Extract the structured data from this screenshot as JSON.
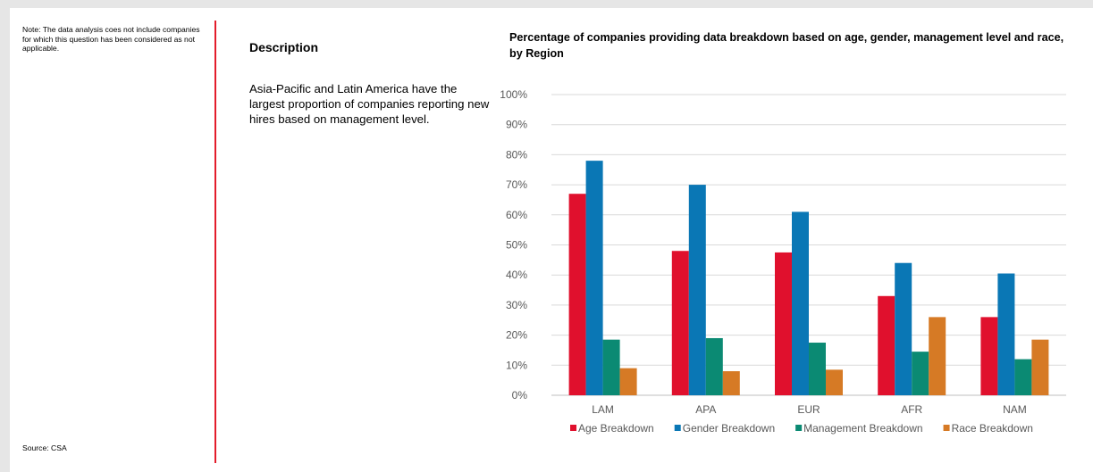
{
  "note": "Note: The data analysis coes not include companies for which this question has been considered as not applicable.",
  "source": "Source: CSA",
  "description": {
    "title": "Description",
    "text": "Asia-Pacific and Latin America have the largest proportion of companies reporting new hires based on management level."
  },
  "colors": {
    "divider": "#e31c2b",
    "age": "#e0102d",
    "gender": "#0a77b5",
    "management": "#0b8a73",
    "race": "#d67a25"
  },
  "chart_data": {
    "type": "bar",
    "title": "Percentage of companies providing data breakdown based on age, gender, management level and race, by Region",
    "categories": [
      "LAM",
      "APA",
      "EUR",
      "AFR",
      "NAM"
    ],
    "series": [
      {
        "name": "Age Breakdown",
        "values": [
          67,
          48,
          47.5,
          33,
          26
        ]
      },
      {
        "name": "Gender Breakdown",
        "values": [
          78,
          70,
          61,
          44,
          40.5
        ]
      },
      {
        "name": "Management Breakdown",
        "values": [
          18.5,
          19,
          17.5,
          14.5,
          12
        ]
      },
      {
        "name": "Race Breakdown",
        "values": [
          9,
          8,
          8.5,
          26,
          18.5
        ]
      }
    ],
    "y_ticks": [
      "0%",
      "10%",
      "20%",
      "30%",
      "40%",
      "50%",
      "60%",
      "70%",
      "80%",
      "90%",
      "100%"
    ],
    "ylim": [
      0,
      100
    ],
    "xlabel": "",
    "ylabel": "",
    "grid": true,
    "legend_position": "bottom"
  }
}
